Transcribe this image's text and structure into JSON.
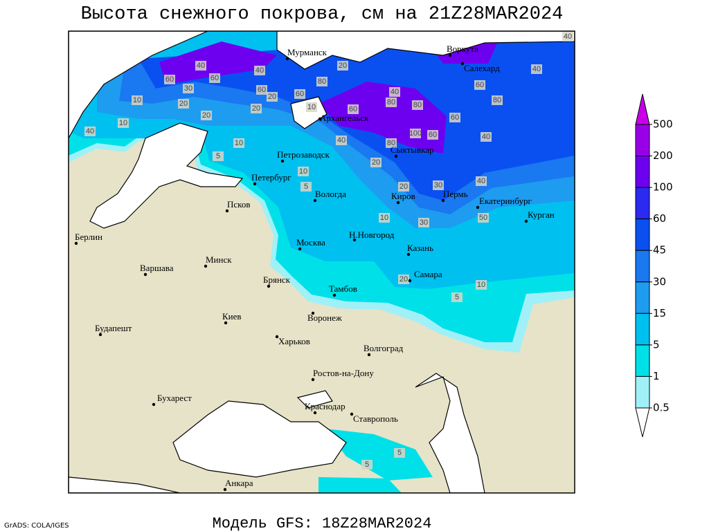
{
  "header": {
    "title": "Высота снежного покрова, см на 21Z28MAR2024"
  },
  "map": {
    "cities": [
      "Мурманск",
      "Воркута",
      "Салехард",
      "Архангельск",
      "Сыктывкар",
      "Петрозаводск",
      "Петербург",
      "Вологда",
      "Киров",
      "Пермь",
      "Екатеринбург",
      "Курган",
      "Псков",
      "Берлин",
      "Н.Новгород",
      "Москва",
      "Казань",
      "Минск",
      "Варшава",
      "Самара",
      "Брянск",
      "Тамбов",
      "Киев",
      "Воронеж",
      "Будапешт",
      "Харьков",
      "Волгоград",
      "Ростов-на-Дону",
      "Бухарест",
      "Краснодар",
      "Ставрополь",
      "Анкара"
    ],
    "contour_labels": [
      40,
      60,
      30,
      60,
      40,
      60,
      20,
      60,
      80,
      20,
      10,
      60,
      20,
      40,
      80,
      80,
      100,
      60,
      60,
      60,
      80,
      40,
      40,
      40,
      40,
      80,
      20,
      5,
      10,
      10,
      5,
      20,
      30,
      40,
      50,
      30,
      10,
      20,
      10,
      5,
      40,
      10,
      10,
      20,
      20,
      5,
      5
    ]
  },
  "legend": {
    "levels": [
      500,
      200,
      100,
      60,
      45,
      30,
      15,
      5,
      1,
      0.5
    ],
    "colors": [
      "#c800e8",
      "#9a00e8",
      "#6e00f0",
      "#2a2af0",
      "#0a50f0",
      "#1a78f0",
      "#1e9cf0",
      "#00c0f0",
      "#00e0e8",
      "#a0f0f8"
    ]
  },
  "footer": {
    "model": "Модель GFS: 18Z28MAR2024",
    "credit": "GrADS: COLA/IGES"
  }
}
